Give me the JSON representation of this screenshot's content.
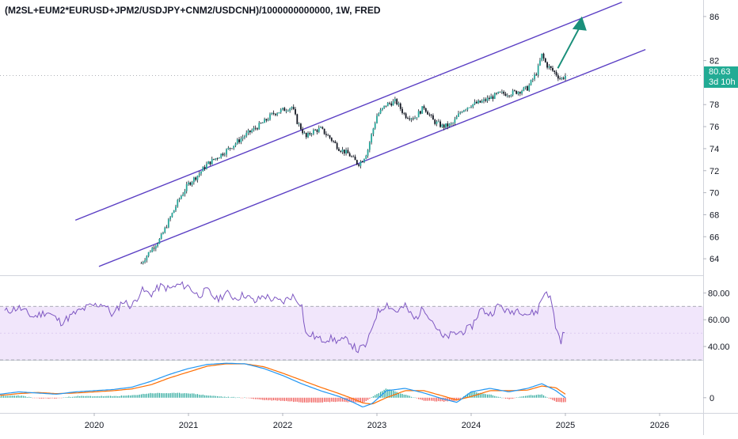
{
  "title": "(M2SL+EUM2*EURUSD+JPM2/USDJPY+CNM2/USDCNH)/1000000000000, 1W, FRED",
  "last_price": "80.63",
  "countdown": "3d 10h",
  "colors": {
    "up": "#26a69a",
    "down": "#ef5350",
    "candle": "#131722",
    "channel": "#5b3fc4",
    "arrow": "#1a8f7a",
    "rsi_line": "#7e57c2",
    "rsi_band": "#f1e6fb",
    "macd_line": "#2196f3",
    "signal_line": "#ff6d00",
    "badge": "#22ab94"
  },
  "chart_data": [
    {
      "type": "line",
      "panel": "price",
      "title": "(M2SL+EUM2*EURUSD+JPM2/USDJPY+CNM2/USDCNH)/1000000000000, 1W, FRED",
      "x_ticks": [
        "2020",
        "2021",
        "2022",
        "2023",
        "2024",
        "2025",
        "2026"
      ],
      "y_ticks": [
        64,
        66,
        68,
        70,
        72,
        74,
        76,
        78,
        82,
        86
      ],
      "ylim": [
        62.5,
        87.5
      ],
      "last_value": 80.63,
      "series": [
        {
          "x": [
            2020.5,
            2020.6,
            2020.7,
            2020.8,
            2020.9,
            2021.0,
            2021.1,
            2021.2,
            2021.3,
            2021.4,
            2021.5,
            2021.6,
            2021.7,
            2021.8,
            2021.9,
            2022.0,
            2022.1,
            2022.15,
            2022.25,
            2022.3,
            2022.4,
            2022.5,
            2022.6,
            2022.7,
            2022.8,
            2022.85,
            2022.9,
            2022.95,
            2023.0,
            2023.1,
            2023.2,
            2023.3,
            2023.4,
            2023.5,
            2023.6,
            2023.7,
            2023.8,
            2023.9,
            2024.0,
            2024.1,
            2024.2,
            2024.3,
            2024.4,
            2024.5,
            2024.6,
            2024.7,
            2024.75,
            2024.8,
            2024.9,
            2024.95,
            2025.0
          ],
          "values": [
            63.6,
            64.8,
            65.8,
            67.6,
            69.4,
            70.8,
            71.6,
            72.6,
            73.2,
            73.8,
            74.5,
            75.2,
            75.8,
            76.4,
            77.2,
            77.5,
            77.8,
            76.5,
            75.0,
            75.5,
            75.8,
            75.0,
            74.0,
            73.5,
            72.6,
            73.0,
            73.8,
            75.5,
            77.0,
            78.0,
            78.3,
            77.0,
            76.8,
            77.8,
            76.5,
            76.0,
            76.2,
            77.5,
            78.0,
            78.2,
            78.6,
            79.0,
            79.0,
            79.2,
            79.5,
            81.0,
            82.5,
            81.6,
            80.8,
            80.3,
            80.63
          ]
        }
      ],
      "annotations": [
        "ascending-channel-upper",
        "ascending-channel-lower",
        "up-arrow"
      ]
    },
    {
      "type": "line",
      "panel": "rsi",
      "y_ticks": [
        "80.00",
        "60.00",
        "40.00"
      ],
      "ylim": [
        30,
        92
      ],
      "band": [
        30,
        70
      ],
      "series": [
        {
          "x": [
            2019.05,
            2019.2,
            2019.35,
            2019.5,
            2019.65,
            2019.8,
            2019.95,
            2020.1,
            2020.2,
            2020.3,
            2020.4,
            2020.5,
            2020.6,
            2020.7,
            2020.8,
            2020.9,
            2021.0,
            2021.1,
            2021.2,
            2021.3,
            2021.4,
            2021.5,
            2021.6,
            2021.7,
            2021.8,
            2021.9,
            2022.0,
            2022.1,
            2022.2,
            2022.25,
            2022.3,
            2022.4,
            2022.5,
            2022.6,
            2022.7,
            2022.75,
            2022.8,
            2022.9,
            2022.95,
            2023.0,
            2023.1,
            2023.2,
            2023.3,
            2023.4,
            2023.5,
            2023.6,
            2023.7,
            2023.8,
            2023.9,
            2024.0,
            2024.1,
            2024.2,
            2024.3,
            2024.4,
            2024.5,
            2024.6,
            2024.7,
            2024.75,
            2024.8,
            2024.85,
            2024.9,
            2024.95,
            2025.0
          ],
          "values": [
            66,
            69,
            62,
            66,
            58,
            65,
            70,
            72,
            63,
            74,
            70,
            82,
            79,
            85,
            83,
            86,
            85,
            78,
            82,
            75,
            80,
            76,
            79,
            73,
            78,
            75,
            73,
            78,
            72,
            47,
            49,
            45,
            46,
            44,
            45,
            40,
            37,
            42,
            55,
            65,
            72,
            66,
            70,
            60,
            69,
            58,
            46,
            49,
            51,
            54,
            68,
            64,
            71,
            65,
            68,
            64,
            66,
            76,
            82,
            74,
            54,
            44,
            53
          ]
        }
      ]
    },
    {
      "type": "line",
      "panel": "macd",
      "y_ticks": [
        "0"
      ],
      "ylim": [
        -1.3,
        3.1
      ],
      "series": [
        {
          "name": "",
          "x": [
            2019.0,
            2019.2,
            2019.4,
            2019.6,
            2019.8,
            2020.0,
            2020.2,
            2020.4,
            2020.6,
            2020.8,
            2021.0,
            2021.2,
            2021.4,
            2021.6,
            2021.8,
            2022.0,
            2022.2,
            2022.4,
            2022.6,
            2022.75,
            2022.85,
            2022.95,
            2023.1,
            2023.3,
            2023.5,
            2023.7,
            2023.85,
            2024.0,
            2024.2,
            2024.4,
            2024.6,
            2024.75,
            2024.9,
            2025.0
          ],
          "values": [
            0.3,
            0.5,
            0.4,
            0.3,
            0.5,
            0.6,
            0.7,
            0.9,
            1.4,
            2.0,
            2.5,
            2.85,
            2.95,
            2.9,
            2.5,
            1.9,
            1.2,
            0.6,
            0.1,
            -0.4,
            -0.8,
            -0.5,
            0.6,
            0.8,
            0.4,
            -0.1,
            -0.4,
            0.5,
            0.8,
            0.5,
            0.8,
            1.2,
            0.6,
            0.0
          ]
        },
        {
          "name": "",
          "x": [
            2019.0,
            2019.2,
            2019.4,
            2019.6,
            2019.8,
            2020.0,
            2020.2,
            2020.4,
            2020.6,
            2020.8,
            2021.0,
            2021.2,
            2021.4,
            2021.6,
            2021.8,
            2022.0,
            2022.2,
            2022.4,
            2022.6,
            2022.75,
            2022.85,
            2022.95,
            2023.1,
            2023.3,
            2023.5,
            2023.7,
            2023.85,
            2024.0,
            2024.2,
            2024.4,
            2024.6,
            2024.75,
            2024.9,
            2025.0
          ],
          "values": [
            0.2,
            0.35,
            0.45,
            0.35,
            0.4,
            0.5,
            0.6,
            0.75,
            1.1,
            1.7,
            2.2,
            2.7,
            2.9,
            2.9,
            2.65,
            2.1,
            1.5,
            0.9,
            0.35,
            -0.1,
            -0.45,
            -0.55,
            0.0,
            0.6,
            0.6,
            0.15,
            -0.2,
            0.1,
            0.6,
            0.6,
            0.65,
            1.0,
            0.85,
            0.3
          ]
        }
      ]
    }
  ]
}
